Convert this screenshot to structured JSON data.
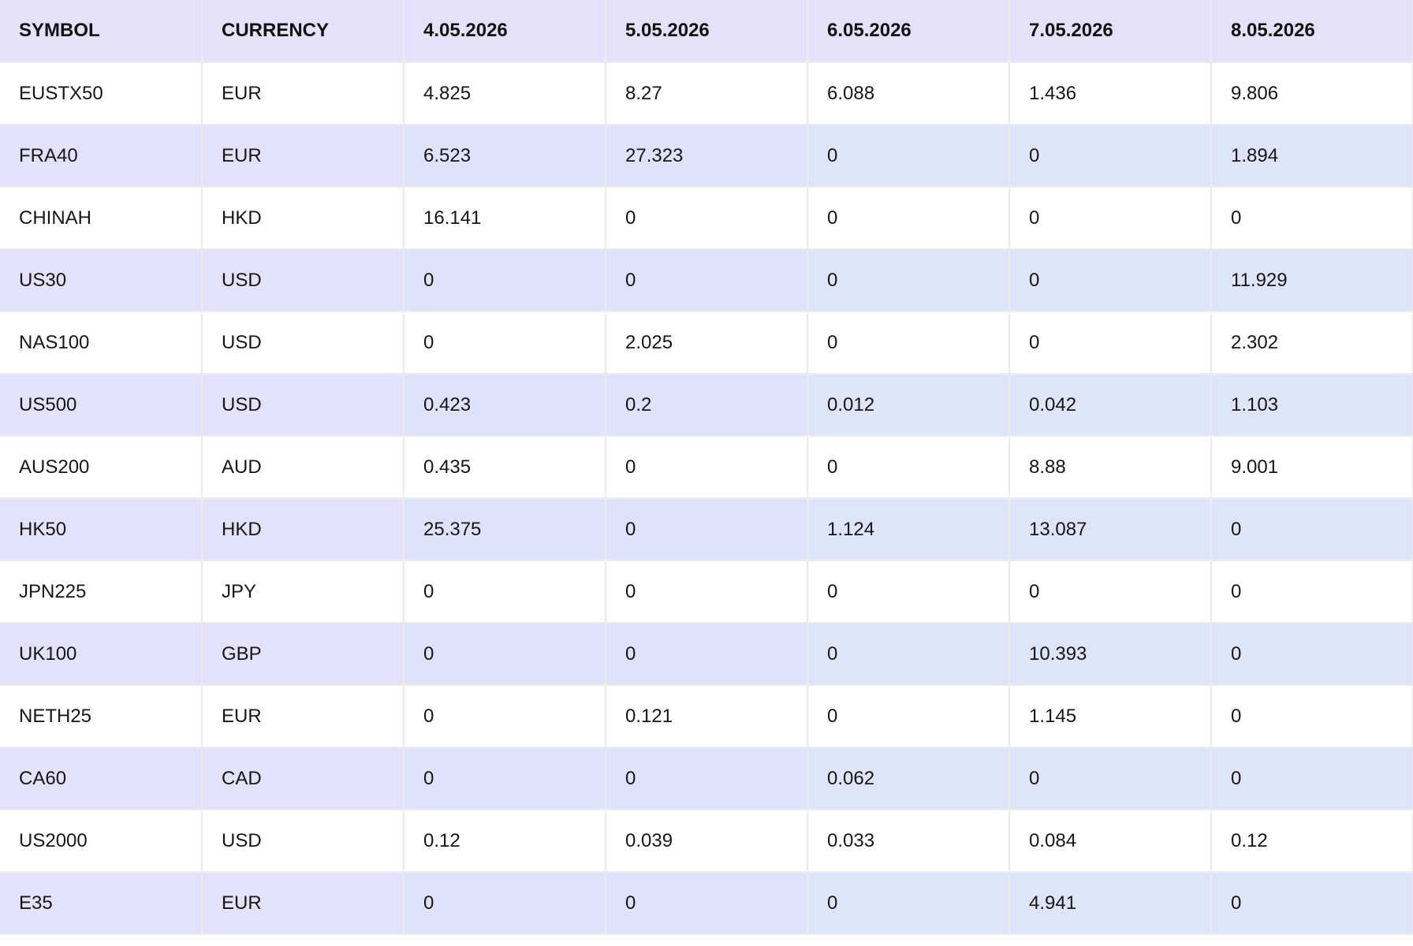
{
  "columns": [
    "SYMBOL",
    "CURRENCY",
    "4.05.2026",
    "5.05.2026",
    "6.05.2026",
    "7.05.2026",
    "8.05.2026"
  ],
  "rows": [
    [
      "EUSTX50",
      "EUR",
      "4.825",
      "8.27",
      "6.088",
      "1.436",
      "9.806"
    ],
    [
      "FRA40",
      "EUR",
      "6.523",
      "27.323",
      "0",
      "0",
      "1.894"
    ],
    [
      "CHINAH",
      "HKD",
      "16.141",
      "0",
      "0",
      "0",
      "0"
    ],
    [
      "US30",
      "USD",
      "0",
      "0",
      "0",
      "0",
      "11.929"
    ],
    [
      "NAS100",
      "USD",
      "0",
      "2.025",
      "0",
      "0",
      "2.302"
    ],
    [
      "US500",
      "USD",
      "0.423",
      "0.2",
      "0.012",
      "0.042",
      "1.103"
    ],
    [
      "AUS200",
      "AUD",
      "0.435",
      "0",
      "0",
      "8.88",
      "9.001"
    ],
    [
      "HK50",
      "HKD",
      "25.375",
      "0",
      "1.124",
      "13.087",
      "0"
    ],
    [
      "JPN225",
      "JPY",
      "0",
      "0",
      "0",
      "0",
      "0"
    ],
    [
      "UK100",
      "GBP",
      "0",
      "0",
      "0",
      "10.393",
      "0"
    ],
    [
      "NETH25",
      "EUR",
      "0",
      "0.121",
      "0",
      "1.145",
      "0"
    ],
    [
      "CA60",
      "CAD",
      "0",
      "0",
      "0.062",
      "0",
      "0"
    ],
    [
      "US2000",
      "USD",
      "0.12",
      "0.039",
      "0.033",
      "0.084",
      "0.12"
    ],
    [
      "E35",
      "EUR",
      "0",
      "0",
      "0",
      "4.941",
      "0"
    ]
  ],
  "colors": {
    "header_bg": "#e5e1fb",
    "row_alt_bg": "#dfe2fb",
    "row_bg": "#ffffff",
    "border": "#ececec"
  }
}
